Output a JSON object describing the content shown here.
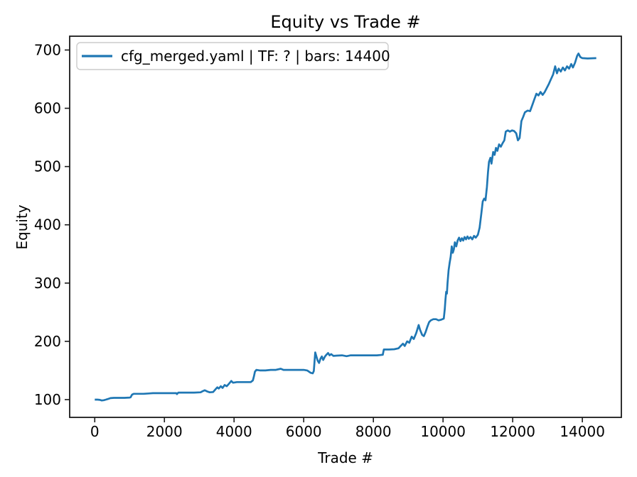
{
  "figure": {
    "title": "Equity vs Trade #",
    "xlabel": "Trade #",
    "ylabel": "Equity"
  },
  "legend": {
    "entries": [
      {
        "label": "cfg_merged.yaml | TF: ? | bars: 14400",
        "color": "#1f77b4"
      }
    ]
  },
  "chart_data": {
    "type": "line",
    "title": "Equity vs Trade #",
    "xlabel": "Trade #",
    "ylabel": "Equity",
    "legend_position": "upper left",
    "grid": false,
    "line_color": "#1f77b4",
    "xlim": [
      -720,
      15120
    ],
    "ylim": [
      69.5,
      723.7
    ],
    "x_ticks": [
      0,
      2000,
      4000,
      6000,
      8000,
      10000,
      12000,
      14000
    ],
    "y_ticks": [
      100,
      200,
      300,
      400,
      500,
      600,
      700
    ],
    "series": [
      {
        "name": "cfg_merged.yaml | TF: ? | bars: 14400",
        "points": [
          [
            0,
            100
          ],
          [
            80,
            100
          ],
          [
            150,
            99.5
          ],
          [
            200,
            98.5
          ],
          [
            260,
            99
          ],
          [
            320,
            100
          ],
          [
            380,
            101
          ],
          [
            450,
            102.5
          ],
          [
            550,
            103
          ],
          [
            700,
            103
          ],
          [
            850,
            103
          ],
          [
            1000,
            103.5
          ],
          [
            1030,
            104
          ],
          [
            1070,
            108.5
          ],
          [
            1120,
            110
          ],
          [
            1250,
            110
          ],
          [
            1400,
            110
          ],
          [
            1550,
            110.5
          ],
          [
            1670,
            111
          ],
          [
            1800,
            111
          ],
          [
            1950,
            111
          ],
          [
            2100,
            111
          ],
          [
            2250,
            111
          ],
          [
            2340,
            111
          ],
          [
            2360,
            109.5
          ],
          [
            2400,
            112
          ],
          [
            2550,
            112
          ],
          [
            2700,
            112
          ],
          [
            2850,
            112
          ],
          [
            3040,
            112.5
          ],
          [
            3100,
            114.5
          ],
          [
            3160,
            116
          ],
          [
            3230,
            114
          ],
          [
            3300,
            112.5
          ],
          [
            3400,
            113
          ],
          [
            3470,
            118
          ],
          [
            3520,
            121
          ],
          [
            3560,
            119
          ],
          [
            3620,
            123
          ],
          [
            3670,
            120
          ],
          [
            3730,
            125
          ],
          [
            3790,
            123
          ],
          [
            3850,
            127
          ],
          [
            3920,
            132
          ],
          [
            3970,
            129
          ],
          [
            4080,
            130
          ],
          [
            4200,
            130
          ],
          [
            4350,
            130
          ],
          [
            4480,
            130
          ],
          [
            4540,
            133
          ],
          [
            4570,
            140
          ],
          [
            4600,
            148
          ],
          [
            4640,
            151
          ],
          [
            4750,
            150
          ],
          [
            4900,
            150
          ],
          [
            5050,
            151
          ],
          [
            5200,
            151
          ],
          [
            5340,
            153
          ],
          [
            5420,
            151
          ],
          [
            5550,
            151
          ],
          [
            5700,
            151
          ],
          [
            5850,
            151
          ],
          [
            6000,
            151
          ],
          [
            6100,
            150
          ],
          [
            6200,
            146
          ],
          [
            6260,
            145
          ],
          [
            6290,
            149
          ],
          [
            6310,
            165
          ],
          [
            6330,
            181
          ],
          [
            6360,
            175
          ],
          [
            6400,
            167
          ],
          [
            6440,
            163
          ],
          [
            6480,
            170
          ],
          [
            6520,
            174
          ],
          [
            6560,
            168
          ],
          [
            6610,
            174
          ],
          [
            6650,
            177
          ],
          [
            6700,
            180
          ],
          [
            6740,
            176
          ],
          [
            6790,
            178
          ],
          [
            6850,
            175
          ],
          [
            6950,
            175.5
          ],
          [
            7100,
            176
          ],
          [
            7230,
            174.5
          ],
          [
            7350,
            176
          ],
          [
            7500,
            176
          ],
          [
            7700,
            176
          ],
          [
            7900,
            176
          ],
          [
            8100,
            176
          ],
          [
            8270,
            177
          ],
          [
            8300,
            186
          ],
          [
            8450,
            186
          ],
          [
            8600,
            186.5
          ],
          [
            8720,
            188
          ],
          [
            8800,
            193
          ],
          [
            8850,
            196
          ],
          [
            8900,
            192
          ],
          [
            8970,
            200
          ],
          [
            9030,
            197.5
          ],
          [
            9100,
            208
          ],
          [
            9160,
            204
          ],
          [
            9230,
            214
          ],
          [
            9270,
            222
          ],
          [
            9300,
            228
          ],
          [
            9340,
            220
          ],
          [
            9400,
            211
          ],
          [
            9450,
            209
          ],
          [
            9500,
            216
          ],
          [
            9550,
            225
          ],
          [
            9600,
            233
          ],
          [
            9650,
            236
          ],
          [
            9720,
            238
          ],
          [
            9800,
            238
          ],
          [
            9870,
            236
          ],
          [
            9940,
            237
          ],
          [
            10020,
            239
          ],
          [
            10050,
            255
          ],
          [
            10070,
            272
          ],
          [
            10090,
            285
          ],
          [
            10110,
            282
          ],
          [
            10130,
            300
          ],
          [
            10160,
            322
          ],
          [
            10190,
            335
          ],
          [
            10220,
            345
          ],
          [
            10250,
            363
          ],
          [
            10280,
            352
          ],
          [
            10310,
            358
          ],
          [
            10340,
            370
          ],
          [
            10380,
            363
          ],
          [
            10420,
            373
          ],
          [
            10460,
            378
          ],
          [
            10500,
            372
          ],
          [
            10540,
            377
          ],
          [
            10580,
            373
          ],
          [
            10620,
            379
          ],
          [
            10660,
            375
          ],
          [
            10700,
            380
          ],
          [
            10740,
            376
          ],
          [
            10790,
            379
          ],
          [
            10840,
            375
          ],
          [
            10890,
            381
          ],
          [
            10940,
            378
          ],
          [
            11000,
            383
          ],
          [
            11050,
            395
          ],
          [
            11100,
            420
          ],
          [
            11140,
            440
          ],
          [
            11180,
            445
          ],
          [
            11220,
            442
          ],
          [
            11260,
            465
          ],
          [
            11290,
            490
          ],
          [
            11320,
            508
          ],
          [
            11360,
            515
          ],
          [
            11390,
            505
          ],
          [
            11440,
            525
          ],
          [
            11480,
            520
          ],
          [
            11520,
            532
          ],
          [
            11560,
            527
          ],
          [
            11610,
            538
          ],
          [
            11660,
            534
          ],
          [
            11710,
            540
          ],
          [
            11760,
            545
          ],
          [
            11800,
            560
          ],
          [
            11860,
            562
          ],
          [
            11920,
            560
          ],
          [
            11980,
            562
          ],
          [
            12040,
            561
          ],
          [
            12100,
            557
          ],
          [
            12150,
            545
          ],
          [
            12200,
            549
          ],
          [
            12250,
            578
          ],
          [
            12300,
            585
          ],
          [
            12350,
            593
          ],
          [
            12430,
            596
          ],
          [
            12500,
            595
          ],
          [
            12560,
            605
          ],
          [
            12620,
            615
          ],
          [
            12680,
            625
          ],
          [
            12740,
            622
          ],
          [
            12800,
            628
          ],
          [
            12860,
            623
          ],
          [
            12920,
            628
          ],
          [
            12980,
            635
          ],
          [
            13040,
            642
          ],
          [
            13100,
            650
          ],
          [
            13160,
            658
          ],
          [
            13220,
            672
          ],
          [
            13270,
            660
          ],
          [
            13320,
            668
          ],
          [
            13380,
            663
          ],
          [
            13440,
            670
          ],
          [
            13500,
            665
          ],
          [
            13560,
            672
          ],
          [
            13620,
            668
          ],
          [
            13680,
            676
          ],
          [
            13730,
            670
          ],
          [
            13790,
            678
          ],
          [
            13850,
            690
          ],
          [
            13890,
            694
          ],
          [
            13940,
            688
          ],
          [
            14000,
            686
          ],
          [
            14150,
            685.5
          ],
          [
            14400,
            686
          ]
        ]
      }
    ]
  }
}
